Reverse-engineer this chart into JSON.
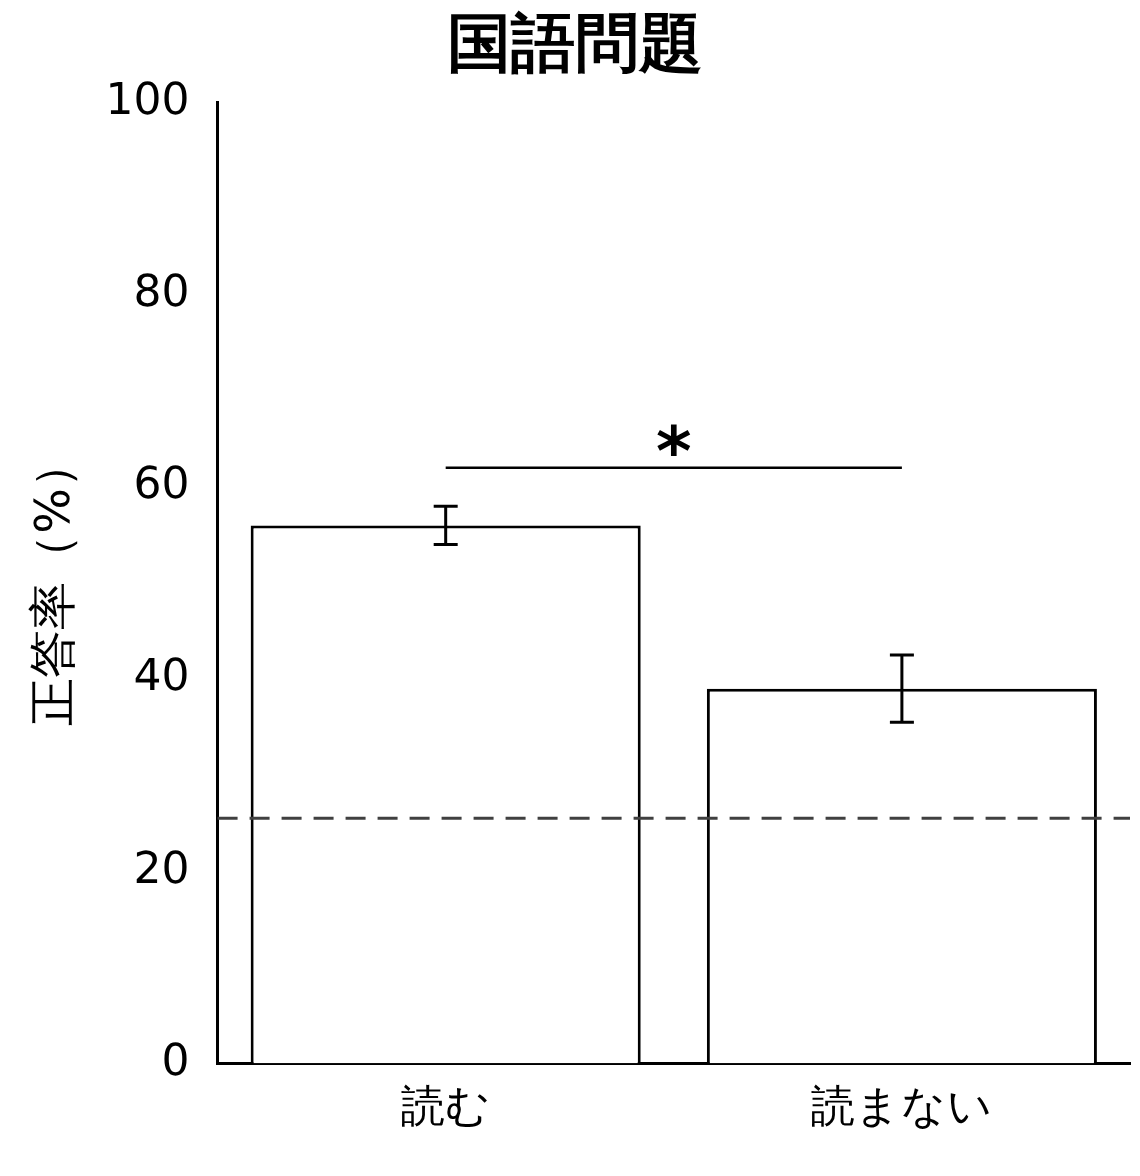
{
  "chart_data": {
    "type": "bar",
    "title": "国語問題",
    "ylabel": "正答率（%）",
    "categories": [
      "読む",
      "読まない"
    ],
    "values": [
      56,
      39
    ],
    "errors": [
      [
        54,
        58
      ],
      [
        35.5,
        42.5
      ]
    ],
    "color": "#ffffff",
    "ylim": [
      0,
      100
    ],
    "yticks": [
      0,
      20,
      40,
      60,
      80,
      100
    ],
    "grid": false,
    "legend": false,
    "ref_lines": [
      {
        "axis": "y",
        "value": 25.5,
        "line_style": "dashed",
        "color": "#404040"
      }
    ],
    "annotations": [
      "*"
    ]
  }
}
